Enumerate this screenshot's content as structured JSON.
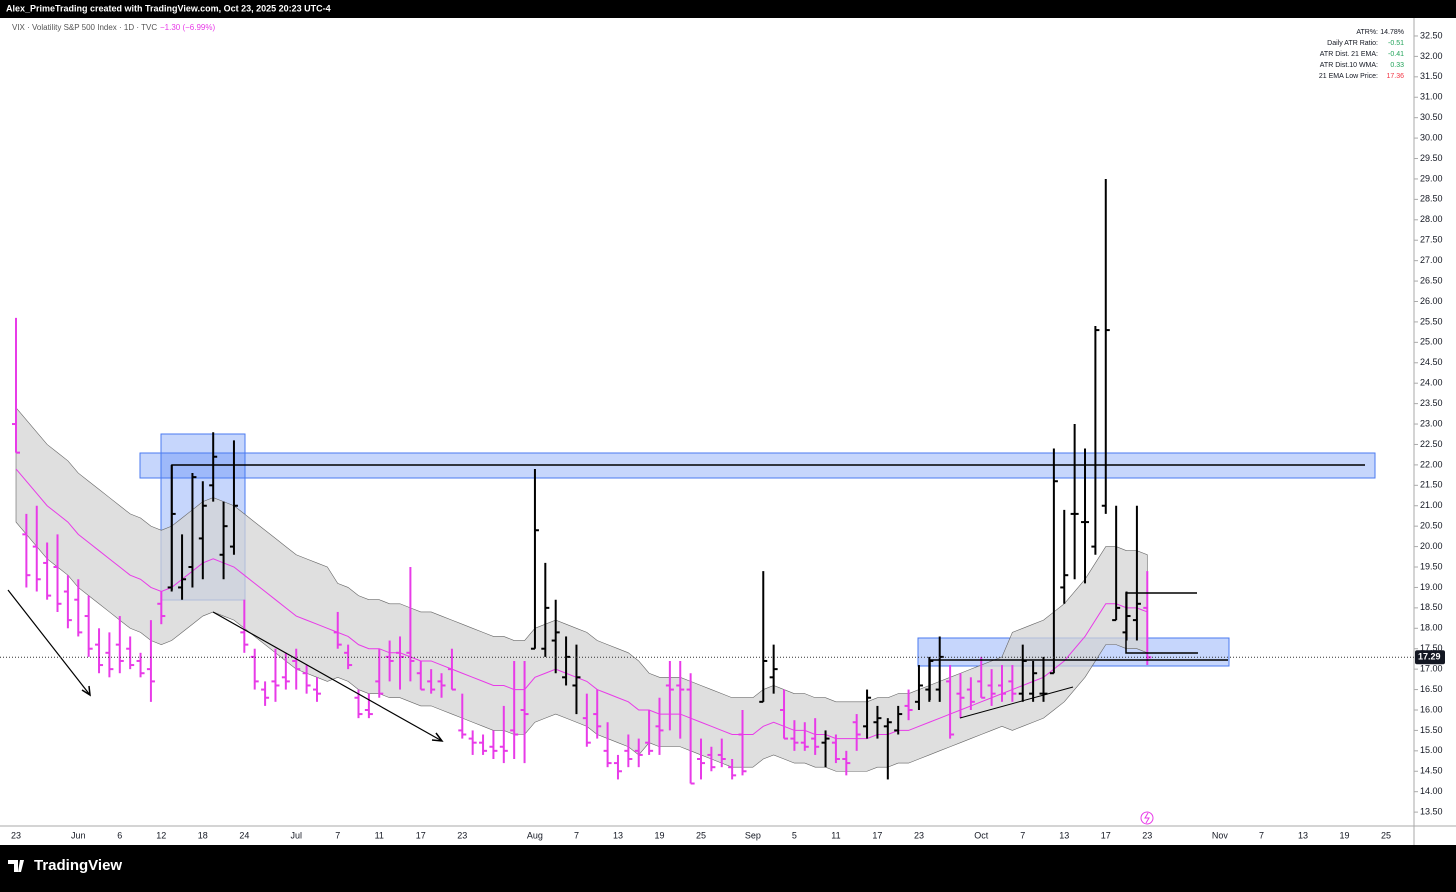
{
  "header": {
    "credit": "Alex_PrimeTrading created with TradingView.com, Oct 23, 2025 20:23 UTC-4"
  },
  "legend": {
    "symbol": "VIX · Volatility S&P 500 Index · 1D · TVC",
    "change": "−1.30 (−6.99%)"
  },
  "indicator_table": {
    "rows": [
      [
        "ATR%:",
        "14.78%"
      ],
      [
        "Daily ATR Ratio:",
        "-0.51"
      ],
      [
        "ATR Dist. 21 EMA:",
        "-0.41"
      ],
      [
        "ATR Dist.10 WMA:",
        "0.33"
      ],
      [
        "21 EMA Low Price:",
        "17.36"
      ]
    ]
  },
  "footer": {
    "brand": "TradingView"
  },
  "chart_data": {
    "type": "ohlc",
    "up_color": "#000000",
    "down_color": "#e83be8",
    "ema_color": "#e83be8",
    "band_color": "#d4d4d4",
    "grid": false,
    "categories": [
      "23",
      null,
      null,
      null,
      null,
      null,
      "Jun",
      null,
      null,
      null,
      "6",
      null,
      null,
      null,
      "12",
      null,
      null,
      null,
      "18",
      null,
      null,
      null,
      "24",
      null,
      null,
      null,
      null,
      "Jul",
      null,
      null,
      null,
      "7",
      null,
      null,
      null,
      "11",
      null,
      null,
      null,
      "17",
      null,
      null,
      null,
      "23",
      null,
      null,
      null,
      null,
      null,
      null,
      "Aug",
      null,
      null,
      null,
      "7",
      null,
      null,
      null,
      "13",
      null,
      null,
      null,
      "19",
      null,
      null,
      null,
      "25",
      null,
      null,
      null,
      null,
      "Sep",
      null,
      null,
      null,
      "5",
      null,
      null,
      null,
      "11",
      null,
      null,
      null,
      "17",
      null,
      null,
      null,
      "23",
      null,
      null,
      null,
      null,
      null,
      "Oct",
      null,
      null,
      null,
      "7",
      null,
      null,
      null,
      "13",
      null,
      null,
      null,
      "17",
      null,
      null,
      null,
      "23",
      null,
      null,
      null,
      null,
      null,
      null,
      "Nov",
      null,
      null,
      null,
      "7",
      null,
      null,
      null,
      "13",
      null,
      null,
      null,
      "19",
      null,
      null,
      null,
      "25"
    ],
    "open": [
      23.0,
      20.3,
      20.0,
      19.6,
      19.5,
      18.9,
      18.7,
      18.3,
      17.6,
      17.4,
      17.6,
      17.5,
      17.2,
      17.0,
      18.6,
      19.0,
      19.0,
      19.5,
      20.2,
      21.5,
      19.8,
      20.0,
      17.9,
      17.3,
      16.5,
      16.7,
      16.8,
      17.2,
      16.9,
      16.5,
      null,
      17.9,
      17.4,
      16.3,
      16.0,
      16.7,
      17.3,
      17.4,
      17.4,
      16.9,
      16.7,
      16.7,
      17.0,
      15.5,
      15.3,
      15.2,
      15.1,
      15.1,
      15.5,
      16.0,
      17.5,
      17.5,
      17.7,
      16.8,
      16.6,
      15.8,
      15.9,
      15.0,
      14.7,
      15.0,
      15.0,
      15.2,
      15.6,
      16.6,
      16.6,
      16.5,
      14.8,
      14.9,
      14.9,
      14.6,
      15.4,
      null,
      16.2,
      16.8,
      16.0,
      15.3,
      15.2,
      15.3,
      15.2,
      15.2,
      14.8,
      15.7,
      15.6,
      15.7,
      15.6,
      15.5,
      16.1,
      16.2,
      16.5,
      16.5,
      16.7,
      16.4,
      16.5,
      16.7,
      16.6,
      16.6,
      16.7,
      16.4,
      16.4,
      16.4,
      16.9,
      19.0,
      20.8,
      20.6,
      20.0,
      21.0,
      18.2,
      17.9,
      18.2,
      18.5,
      null,
      null,
      null,
      null,
      null,
      null,
      null,
      null,
      null,
      null,
      null,
      null,
      null,
      null,
      null,
      null,
      null,
      null,
      null,
      null,
      null,
      null,
      null
    ],
    "high": [
      25.6,
      20.8,
      21.0,
      20.1,
      20.3,
      19.3,
      19.2,
      18.8,
      18.0,
      17.9,
      18.3,
      17.8,
      17.4,
      18.2,
      18.9,
      22.0,
      20.3,
      21.8,
      21.6,
      22.8,
      21.1,
      22.6,
      18.7,
      17.5,
      16.7,
      17.5,
      17.4,
      17.5,
      17.1,
      16.8,
      null,
      18.4,
      17.6,
      16.5,
      16.4,
      17.5,
      17.7,
      17.8,
      19.5,
      17.2,
      17.0,
      16.9,
      17.5,
      16.4,
      15.5,
      15.4,
      15.5,
      16.1,
      17.2,
      17.2,
      21.9,
      19.6,
      18.7,
      17.8,
      17.6,
      16.4,
      16.5,
      15.7,
      14.9,
      15.4,
      15.3,
      16.0,
      16.3,
      17.2,
      17.2,
      16.9,
      15.3,
      15.1,
      15.3,
      14.8,
      16.0,
      null,
      19.4,
      17.6,
      16.5,
      15.75,
      15.7,
      15.8,
      15.5,
      15.4,
      15.0,
      15.9,
      16.5,
      16.1,
      15.8,
      16.1,
      16.5,
      17.1,
      17.3,
      17.8,
      17.1,
      16.9,
      16.8,
      17.3,
      17.0,
      17.1,
      17.1,
      17.6,
      17.2,
      17.3,
      22.4,
      20.9,
      23.0,
      22.4,
      25.4,
      29.0,
      21.0,
      18.9,
      21.0,
      19.4,
      null,
      null,
      null,
      null,
      null,
      null,
      null,
      null,
      null,
      null,
      null,
      null,
      null,
      null,
      null,
      null,
      null,
      null,
      null,
      null,
      null,
      null,
      null
    ],
    "low": [
      22.3,
      19.0,
      18.9,
      18.7,
      18.4,
      18.0,
      17.8,
      17.3,
      16.9,
      16.8,
      16.9,
      17.0,
      16.8,
      16.2,
      18.1,
      18.9,
      18.7,
      19.0,
      19.2,
      21.1,
      19.2,
      19.8,
      17.4,
      16.5,
      16.1,
      16.2,
      16.5,
      16.5,
      16.4,
      16.2,
      null,
      17.5,
      17.0,
      15.8,
      15.8,
      16.3,
      16.7,
      16.5,
      16.7,
      16.5,
      16.4,
      16.3,
      16.5,
      15.3,
      14.9,
      14.9,
      14.8,
      14.7,
      14.8,
      14.7,
      17.5,
      17.3,
      16.9,
      16.6,
      15.9,
      15.1,
      15.3,
      14.6,
      14.3,
      14.6,
      14.6,
      14.9,
      14.9,
      15.5,
      15.3,
      14.2,
      14.3,
      14.5,
      14.6,
      14.3,
      14.4,
      null,
      16.2,
      16.4,
      15.3,
      15.0,
      15.0,
      14.9,
      14.6,
      14.7,
      14.4,
      15.0,
      15.3,
      15.3,
      14.3,
      15.4,
      15.75,
      16.0,
      16.2,
      16.2,
      15.3,
      15.8,
      16.0,
      16.3,
      16.1,
      16.2,
      16.2,
      16.2,
      16.2,
      16.2,
      16.9,
      18.6,
      19.2,
      19.1,
      19.8,
      20.8,
      18.2,
      17.7,
      17.7,
      17.1,
      null,
      null,
      null,
      null,
      null,
      null,
      null,
      null,
      null,
      null,
      null,
      null,
      null,
      null,
      null,
      null,
      null,
      null,
      null,
      null,
      null,
      null,
      null
    ],
    "close": [
      22.3,
      19.3,
      19.2,
      18.8,
      18.6,
      18.2,
      17.9,
      17.5,
      17.1,
      17.0,
      17.2,
      17.1,
      16.9,
      16.7,
      18.3,
      20.8,
      19.2,
      21.7,
      21.0,
      22.2,
      20.5,
      21.0,
      17.6,
      16.7,
      16.3,
      16.6,
      16.7,
      17.0,
      16.6,
      16.4,
      null,
      17.6,
      17.1,
      15.9,
      15.9,
      16.4,
      17.2,
      17.3,
      17.2,
      16.5,
      16.5,
      16.6,
      16.5,
      15.4,
      15.2,
      15.0,
      15.0,
      15.0,
      15.4,
      15.9,
      20.4,
      18.5,
      17.9,
      17.3,
      16.8,
      15.2,
      15.6,
      14.7,
      14.5,
      14.8,
      14.9,
      15.0,
      15.5,
      16.5,
      16.5,
      14.2,
      14.7,
      14.6,
      14.8,
      14.4,
      14.5,
      null,
      17.2,
      17.0,
      15.3,
      15.2,
      15.1,
      15.1,
      15.3,
      14.8,
      14.7,
      15.4,
      16.3,
      15.8,
      15.7,
      15.9,
      16.0,
      16.6,
      17.2,
      17.3,
      15.4,
      16.3,
      16.2,
      16.3,
      16.4,
      16.4,
      16.4,
      17.2,
      16.9,
      16.4,
      21.6,
      19.3,
      20.8,
      20.6,
      25.3,
      25.3,
      18.5,
      18.3,
      18.6,
      17.29,
      null,
      null,
      null,
      null,
      null,
      null,
      null,
      null,
      null,
      null,
      null,
      null,
      null,
      null,
      null,
      null,
      null,
      null,
      null,
      null,
      null,
      null,
      null
    ],
    "ema": [
      21.9,
      21.6,
      21.3,
      21.0,
      20.8,
      20.6,
      20.3,
      20.1,
      19.9,
      19.7,
      19.5,
      19.3,
      19.2,
      19.0,
      18.9,
      19.0,
      19.2,
      19.4,
      19.6,
      19.7,
      19.6,
      19.5,
      19.3,
      19.1,
      18.9,
      18.7,
      18.5,
      18.3,
      18.2,
      18.1,
      18.0,
      17.9,
      17.8,
      17.6,
      17.5,
      17.5,
      17.4,
      17.4,
      17.3,
      17.2,
      17.2,
      17.1,
      17.0,
      16.9,
      16.8,
      16.7,
      16.6,
      16.6,
      16.5,
      16.5,
      16.8,
      16.9,
      17.0,
      16.9,
      16.8,
      16.7,
      16.5,
      16.4,
      16.3,
      16.2,
      16.0,
      16.0,
      15.9,
      15.9,
      15.9,
      15.8,
      15.7,
      15.6,
      15.5,
      15.4,
      15.4,
      15.4,
      15.6,
      15.7,
      15.6,
      15.5,
      15.5,
      15.4,
      15.4,
      15.3,
      15.3,
      15.3,
      15.3,
      15.4,
      15.4,
      15.5,
      15.5,
      15.6,
      15.7,
      15.8,
      15.9,
      16.0,
      16.1,
      16.2,
      16.3,
      16.4,
      16.5,
      16.6,
      16.7,
      16.8,
      17.0,
      17.2,
      17.5,
      17.8,
      18.2,
      18.6,
      18.6,
      18.5,
      18.5,
      18.4,
      null,
      null,
      null,
      null,
      null,
      null,
      null,
      null,
      null,
      null,
      null,
      null,
      null,
      null,
      null,
      null,
      null,
      null,
      null,
      null,
      null,
      null,
      null
    ],
    "ema_upper": [
      23.4,
      23.1,
      22.8,
      22.5,
      22.3,
      22.1,
      21.8,
      21.6,
      21.4,
      21.2,
      21.0,
      20.8,
      20.7,
      20.5,
      20.4,
      20.5,
      20.7,
      20.9,
      21.1,
      21.2,
      21.1,
      21.0,
      20.8,
      20.6,
      20.4,
      20.2,
      20.0,
      19.8,
      19.7,
      19.6,
      19.5,
      19.1,
      19.0,
      18.8,
      18.7,
      18.7,
      18.6,
      18.6,
      18.5,
      18.4,
      18.4,
      18.3,
      18.2,
      18.1,
      18.0,
      17.9,
      17.8,
      17.8,
      17.7,
      17.7,
      18.0,
      18.1,
      18.2,
      18.1,
      18.0,
      17.9,
      17.7,
      17.6,
      17.5,
      17.4,
      17.2,
      16.9,
      16.8,
      16.8,
      16.8,
      16.7,
      16.6,
      16.5,
      16.4,
      16.3,
      16.3,
      16.3,
      16.5,
      16.6,
      16.5,
      16.4,
      16.4,
      16.3,
      16.3,
      16.2,
      16.2,
      16.2,
      16.2,
      16.3,
      16.3,
      16.4,
      16.4,
      16.5,
      16.6,
      16.7,
      16.8,
      16.9,
      17.0,
      17.1,
      17.2,
      17.3,
      17.9,
      18.0,
      18.1,
      18.2,
      18.4,
      18.6,
      18.9,
      19.2,
      19.6,
      20.0,
      20.0,
      19.9,
      19.9,
      19.8,
      null,
      null,
      null,
      null,
      null,
      null,
      null,
      null,
      null,
      null,
      null,
      null,
      null,
      null,
      null,
      null,
      null,
      null,
      null,
      null,
      null,
      null,
      null
    ],
    "ema_lower": [
      20.6,
      20.3,
      20.0,
      19.7,
      19.5,
      19.3,
      19.0,
      18.8,
      18.6,
      18.4,
      18.2,
      18.0,
      17.9,
      17.7,
      17.6,
      17.7,
      17.9,
      18.1,
      18.3,
      18.4,
      18.3,
      18.2,
      18.0,
      17.8,
      17.6,
      17.4,
      17.2,
      17.0,
      16.9,
      16.8,
      16.7,
      16.8,
      16.7,
      16.5,
      16.4,
      16.4,
      16.3,
      16.3,
      16.2,
      16.1,
      16.1,
      16.0,
      15.9,
      15.8,
      15.7,
      15.6,
      15.5,
      15.5,
      15.4,
      15.4,
      15.7,
      15.8,
      15.9,
      15.8,
      15.7,
      15.6,
      15.4,
      15.3,
      15.2,
      15.1,
      14.9,
      15.2,
      15.1,
      15.1,
      15.1,
      15.0,
      14.9,
      14.8,
      14.7,
      14.6,
      14.6,
      14.6,
      14.8,
      14.9,
      14.8,
      14.7,
      14.7,
      14.6,
      14.6,
      14.5,
      14.5,
      14.5,
      14.5,
      14.6,
      14.6,
      14.7,
      14.7,
      14.8,
      14.9,
      15.0,
      15.1,
      15.2,
      15.3,
      15.4,
      15.5,
      15.6,
      15.5,
      15.6,
      15.7,
      15.8,
      16.0,
      16.2,
      16.5,
      16.8,
      17.2,
      17.6,
      17.6,
      17.5,
      17.5,
      17.4,
      null,
      null,
      null,
      null,
      null,
      null,
      null,
      null,
      null,
      null,
      null,
      null,
      null,
      null,
      null,
      null,
      null,
      null,
      null,
      null,
      null,
      null,
      null
    ],
    "ylim": [
      13.16,
      32.94
    ],
    "yticks": [
      {
        "value": 13.5,
        "label": "13.50"
      },
      {
        "value": 14,
        "label": "14.00"
      },
      {
        "value": 14.5,
        "label": "14.50"
      },
      {
        "value": 15,
        "label": "15.00"
      },
      {
        "value": 15.5,
        "label": "15.50"
      },
      {
        "value": 16,
        "label": "16.00"
      },
      {
        "value": 16.5,
        "label": "16.50"
      },
      {
        "value": 17,
        "label": "17.00"
      },
      {
        "value": 17.5,
        "label": "17.50"
      },
      {
        "value": 18,
        "label": "18.00"
      },
      {
        "value": 18.5,
        "label": "18.50"
      },
      {
        "value": 19,
        "label": "19.00"
      },
      {
        "value": 19.5,
        "label": "19.50"
      },
      {
        "value": 20,
        "label": "20.00"
      },
      {
        "value": 20.5,
        "label": "20.50"
      },
      {
        "value": 21,
        "label": "21.00"
      },
      {
        "value": 21.5,
        "label": "21.50"
      },
      {
        "value": 22,
        "label": "22.00"
      },
      {
        "value": 22.5,
        "label": "22.50"
      },
      {
        "value": 23,
        "label": "23.00"
      },
      {
        "value": 23.5,
        "label": "23.50"
      },
      {
        "value": 24,
        "label": "24.00"
      },
      {
        "value": 24.5,
        "label": "24.50"
      },
      {
        "value": 25,
        "label": "25.00"
      },
      {
        "value": 25.5,
        "label": "25.50"
      },
      {
        "value": 26,
        "label": "26.00"
      },
      {
        "value": 26.5,
        "label": "26.50"
      },
      {
        "value": 27,
        "label": "27.00"
      },
      {
        "value": 27.5,
        "label": "27.50"
      },
      {
        "value": 28,
        "label": "28.00"
      },
      {
        "value": 28.5,
        "label": "28.50"
      },
      {
        "value": 29,
        "label": "29.00"
      },
      {
        "value": 29.5,
        "label": "29.50"
      },
      {
        "value": 30,
        "label": "30.00"
      },
      {
        "value": 30.5,
        "label": "30.50"
      },
      {
        "value": 31,
        "label": "31.00"
      },
      {
        "value": 31.5,
        "label": "31.50"
      },
      {
        "value": 32,
        "label": "32.00"
      },
      {
        "value": 32.5,
        "label": "32.50"
      }
    ]
  }
}
